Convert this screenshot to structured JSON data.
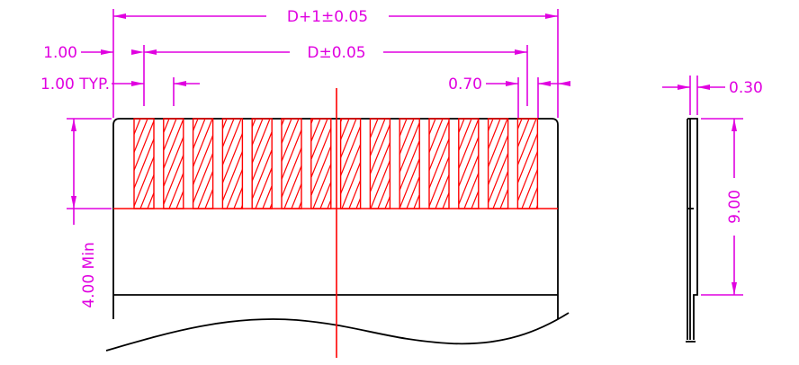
{
  "colors": {
    "dimension": "#e000e0",
    "outline": "#000000",
    "contact_hatch": "#ff0000"
  },
  "labels": {
    "overall_width": "D+1±0.05",
    "pitch_span": "D±0.05",
    "edge_margin": "1.00",
    "pitch_typ": "1.00 TYP.",
    "finger_width": "0.70",
    "thickness": "0.30",
    "stiffener_length": "9.00",
    "min_length": "4.00 Min"
  },
  "contacts": {
    "count": 14
  }
}
